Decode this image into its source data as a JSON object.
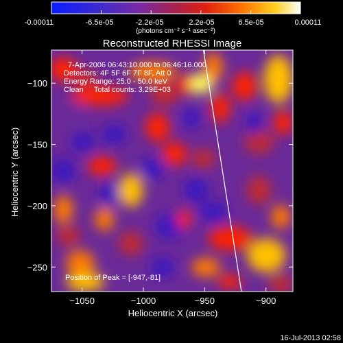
{
  "colorbar": {
    "tick_labels": [
      "-0.00011",
      "-6.5e-05",
      "-2.2e-05",
      "2.2e-05",
      "6.5e-05",
      "0.00011"
    ],
    "range": [
      -0.00011,
      0.00011
    ],
    "units_label": "(photons cm⁻² s⁻¹ asec⁻²)"
  },
  "chart_data": {
    "type": "heatmap",
    "title": "Reconstructed RHESSI Image",
    "xlabel": "Heliocentric X (arcsec)",
    "ylabel": "Heliocentric Y (arcsec)",
    "xlim": [
      -1075,
      -878
    ],
    "ylim": [
      -270,
      -73
    ],
    "xticks": [
      -1050,
      -1000,
      -950,
      -900
    ],
    "yticks": [
      -250,
      -200,
      -150,
      -100
    ],
    "grid": false,
    "annotations": [
      "7-Apr-2006 06:43:10.000 to 06:46:16.000",
      "Detectors: 4F 5F 6F 7F 8F, Att 0",
      "Energy Range: 25.0 - 50.0 keV",
      "Clean     Total counts: 3.29E+03",
      "Position of Peak = [-947,-81]"
    ],
    "peak_position": [
      -947,
      -81
    ],
    "limb_line": [
      [
        -951,
        -73
      ],
      [
        -920,
        -270
      ]
    ],
    "colormap": [
      "#0a1cff",
      "#3a16c0",
      "#6b2a9a",
      "#8a2d8a",
      "#c02a30",
      "#ff2400",
      "#ff7a00",
      "#ffc000",
      "#ffff60",
      "#ffffff"
    ]
  },
  "footer": {
    "timestamp": "16-Jul-2013 02:58"
  }
}
